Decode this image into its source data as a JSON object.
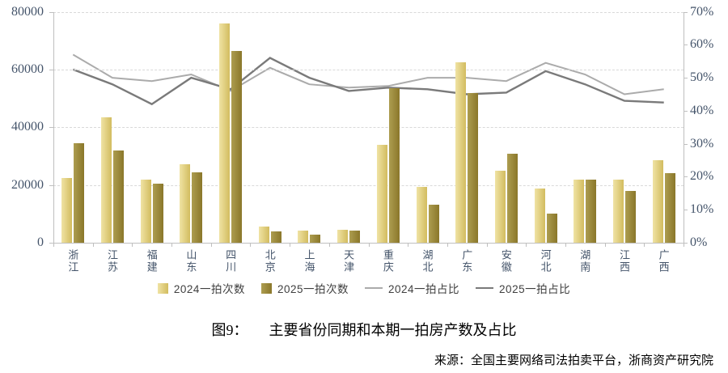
{
  "chart_data": {
    "type": "bar+line combo",
    "title_prefix": "图9：",
    "title_main": "主要省份同期和本期一拍房产数及占比",
    "source": "来源：全国主要网络司法拍卖平台，浙商资产研究院",
    "categories": [
      "浙江",
      "江苏",
      "福建",
      "山东",
      "四川",
      "北京",
      "上海",
      "天津",
      "重庆",
      "湖北",
      "广东",
      "安徽",
      "河北",
      "湖南",
      "江西",
      "广西"
    ],
    "bar_series": [
      {
        "name": "2024一拍次数",
        "axis": "left",
        "values": [
          22500,
          43300,
          21800,
          27300,
          75900,
          5700,
          4200,
          4600,
          33800,
          19300,
          62600,
          24900,
          18900,
          21800,
          21800,
          28500
        ],
        "color_start": "#F0E3A4",
        "color_end": "#D2BC5F"
      },
      {
        "name": "2025一拍次数",
        "axis": "left",
        "values": [
          34600,
          32000,
          20400,
          24300,
          66300,
          4000,
          2900,
          4100,
          53400,
          13300,
          51900,
          30700,
          10000,
          21900,
          17800,
          24100
        ],
        "color_start": "#AD9D50",
        "color_end": "#8A772A"
      }
    ],
    "line_series": [
      {
        "name": "2024一拍占比",
        "axis": "right",
        "unit": "%",
        "values": [
          57,
          50,
          49,
          51,
          46,
          53,
          48,
          47,
          47.5,
          50,
          50,
          49,
          54.5,
          51,
          45,
          46.5
        ],
        "color": "#ABABAB",
        "width": 2
      },
      {
        "name": "2025一拍占比",
        "axis": "right",
        "unit": "%",
        "values": [
          52.5,
          48,
          42,
          50,
          46.5,
          56,
          50,
          46,
          47,
          46.5,
          45,
          45.5,
          52,
          48,
          43,
          42.5
        ],
        "color": "#7A7A7A",
        "width": 2.4
      }
    ],
    "left_axis": {
      "min": 0,
      "max": 80000,
      "step": 20000,
      "tick_labels": [
        "0",
        "20000",
        "40000",
        "60000",
        "80000"
      ]
    },
    "right_axis": {
      "min": 0,
      "max": 70,
      "step": 10,
      "tick_labels": [
        "0%",
        "10%",
        "20%",
        "30%",
        "40%",
        "50%",
        "60%",
        "70%"
      ]
    },
    "grid": "horizontal dashed at every 20000 (left axis)",
    "legend_position": "bottom-center"
  },
  "colors": {
    "axis_text": "#44546A",
    "grid_line": "#D9D9D9",
    "axis_line": "#BFBFBF",
    "legend_text": "#404040",
    "background": "#FFFFFF"
  }
}
